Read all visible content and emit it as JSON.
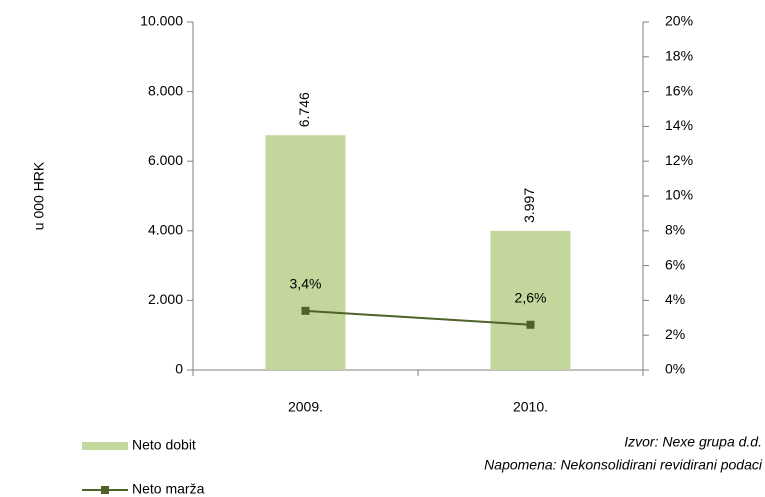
{
  "chart_data": {
    "type": "bar",
    "y_axis_label": "u 000 HRK",
    "categories": [
      "2009.",
      "2010."
    ],
    "series": [
      {
        "name": "Neto dobit",
        "type": "bar",
        "color": "#c3d69b",
        "values": [
          6746,
          3997
        ],
        "value_labels": [
          "6.746",
          "3.997"
        ]
      },
      {
        "name": "Neto marža",
        "type": "line",
        "axis": "y2",
        "color": "#4f6228",
        "values": [
          3.4,
          2.6
        ],
        "value_labels": [
          "3,4%",
          "2,6%"
        ]
      }
    ],
    "ylim": [
      0,
      10000
    ],
    "yticks": [
      0,
      {
        "value": 2000,
        "label": "2.000"
      },
      {
        "value": 4000,
        "label": "4.000"
      },
      {
        "value": 6000,
        "label": "6.000"
      },
      {
        "value": 8000,
        "label": "8.000"
      },
      {
        "value": 10000,
        "label": "10.000"
      }
    ],
    "y2lim": [
      0,
      20
    ],
    "y2ticks": [
      {
        "value": 0,
        "label": "0%"
      },
      {
        "value": 2,
        "label": "2%"
      },
      {
        "value": 4,
        "label": "4%"
      },
      {
        "value": 6,
        "label": "6%"
      },
      {
        "value": 8,
        "label": "8%"
      },
      {
        "value": 10,
        "label": "10%"
      },
      {
        "value": 12,
        "label": "12%"
      },
      {
        "value": 14,
        "label": "14%"
      },
      {
        "value": 16,
        "label": "16%"
      },
      {
        "value": 18,
        "label": "18%"
      },
      {
        "value": 20,
        "label": "20%"
      }
    ],
    "legend": "bottom-left",
    "notes": [
      "Izvor: Nexe grupa d.d.",
      "Napomena: Nekonsolidirani revidirani podaci"
    ]
  }
}
